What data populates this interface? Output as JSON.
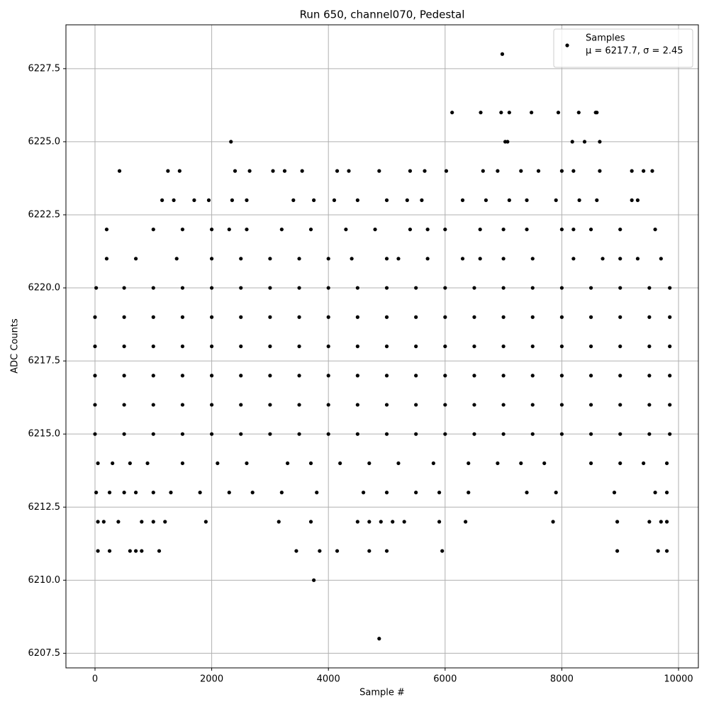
{
  "chart_data": {
    "type": "scatter",
    "title": "Run 650, channel070, Pedestal",
    "x_label": "Sample #",
    "y_label": "ADC Counts",
    "xlim": [
      -498,
      10340
    ],
    "ylim": [
      6207.0,
      6229.0
    ],
    "xticks": [
      0,
      2000,
      4000,
      6000,
      8000,
      10000
    ],
    "yticks": [
      6207.5,
      {
        "value": 6210,
        "label": "6210.0"
      },
      6212.5,
      {
        "value": 6215,
        "label": "6215.0"
      },
      6217.5,
      {
        "value": 6220,
        "label": "6220.0"
      },
      6222.5,
      {
        "value": 6225,
        "label": "6225.0"
      },
      6227.5
    ],
    "grid": true,
    "legend": "upper right",
    "series": [
      {
        "name": "Samples",
        "color": "#000000",
        "annotation": "μ = 6217.7, σ = 2.45",
        "x": [
          50,
          150,
          400,
          800,
          1000,
          1200,
          1900,
          3150,
          3700,
          4500,
          4700,
          4900,
          5100,
          5300,
          5900,
          6350,
          7850,
          8950,
          9500,
          9700,
          9800,
          20,
          250,
          500,
          700,
          1000,
          1300,
          1800,
          2300,
          2700,
          3200,
          3800,
          4600,
          5000,
          5500,
          5900,
          6400,
          7400,
          7900,
          8900,
          9600,
          9800,
          50,
          300,
          600,
          900,
          1500,
          2100,
          2600,
          3300,
          3700,
          4200,
          4700,
          5200,
          5800,
          6400,
          6900,
          7300,
          7700,
          8500,
          9000,
          9400,
          9800,
          0,
          500,
          1000,
          1500,
          2000,
          2500,
          3000,
          3500,
          4000,
          4500,
          5000,
          5500,
          6000,
          6500,
          7000,
          7500,
          8000,
          8500,
          9000,
          9500,
          9850,
          0,
          500,
          1000,
          1500,
          2000,
          2500,
          3000,
          3500,
          4000,
          4500,
          5000,
          5500,
          6000,
          6500,
          7000,
          7500,
          8000,
          8500,
          9000,
          9500,
          9850,
          0,
          500,
          1000,
          1500,
          2000,
          2500,
          3000,
          3500,
          4000,
          4500,
          5000,
          5500,
          6000,
          6500,
          7000,
          7500,
          8000,
          8500,
          9000,
          9500,
          9850,
          0,
          500,
          1000,
          1500,
          2000,
          2500,
          3000,
          3500,
          4000,
          4500,
          5000,
          5500,
          6000,
          6500,
          7000,
          7500,
          8000,
          8500,
          9000,
          9500,
          9850,
          0,
          500,
          1000,
          1500,
          2000,
          2500,
          3000,
          3500,
          4000,
          4500,
          5000,
          5500,
          6000,
          6500,
          7000,
          7500,
          8000,
          8500,
          9000,
          9500,
          9850,
          20,
          500,
          1000,
          1500,
          2000,
          2500,
          3000,
          3500,
          4000,
          4500,
          5000,
          5500,
          6000,
          6500,
          7000,
          7500,
          8000,
          8500,
          9000,
          9500,
          9850,
          200,
          700,
          1400,
          2000,
          2500,
          3000,
          3500,
          4000,
          4400,
          5000,
          5200,
          5700,
          6300,
          6600,
          7000,
          7500,
          8200,
          8700,
          9000,
          9300,
          9700,
          200,
          1000,
          1500,
          2000,
          2300,
          2600,
          3200,
          3700,
          4300,
          4800,
          5400,
          5700,
          6000,
          6600,
          7000,
          7400,
          8000,
          8200,
          8500,
          9000,
          9600,
          50,
          250,
          600,
          700,
          800,
          1100,
          3450,
          3850,
          4150,
          4700,
          5000,
          5950,
          8950,
          9650,
          9800,
          1150,
          1350,
          1700,
          1950,
          2350,
          2600,
          3400,
          3750,
          4100,
          4500,
          5000,
          5350,
          5600,
          6300,
          6700,
          7100,
          7400,
          7900,
          8300,
          8600,
          9200,
          9300,
          420,
          1250,
          1450,
          2400,
          2650,
          3050,
          3250,
          3550,
          4150,
          4350,
          4870,
          5400,
          5650,
          6020,
          6650,
          6900,
          7300,
          7600,
          8000,
          8200,
          8650,
          9200,
          9400,
          9550,
          2330,
          7030,
          7070,
          8180,
          8390,
          8650,
          6120,
          6610,
          6960,
          7100,
          7480,
          7940,
          8290,
          8580,
          8600,
          3750,
          4870,
          6980
        ],
        "values": [
          6212,
          6212,
          6212,
          6212,
          6212,
          6212,
          6212,
          6212,
          6212,
          6212,
          6212,
          6212,
          6212,
          6212,
          6212,
          6212,
          6212,
          6212,
          6212,
          6212,
          6212,
          6213,
          6213,
          6213,
          6213,
          6213,
          6213,
          6213,
          6213,
          6213,
          6213,
          6213,
          6213,
          6213,
          6213,
          6213,
          6213,
          6213,
          6213,
          6213,
          6213,
          6213,
          6214,
          6214,
          6214,
          6214,
          6214,
          6214,
          6214,
          6214,
          6214,
          6214,
          6214,
          6214,
          6214,
          6214,
          6214,
          6214,
          6214,
          6214,
          6214,
          6214,
          6214,
          6215,
          6215,
          6215,
          6215,
          6215,
          6215,
          6215,
          6215,
          6215,
          6215,
          6215,
          6215,
          6215,
          6215,
          6215,
          6215,
          6215,
          6215,
          6215,
          6215,
          6215,
          6216,
          6216,
          6216,
          6216,
          6216,
          6216,
          6216,
          6216,
          6216,
          6216,
          6216,
          6216,
          6216,
          6216,
          6216,
          6216,
          6216,
          6216,
          6216,
          6216,
          6216,
          6217,
          6217,
          6217,
          6217,
          6217,
          6217,
          6217,
          6217,
          6217,
          6217,
          6217,
          6217,
          6217,
          6217,
          6217,
          6217,
          6217,
          6217,
          6217,
          6217,
          6217,
          6218,
          6218,
          6218,
          6218,
          6218,
          6218,
          6218,
          6218,
          6218,
          6218,
          6218,
          6218,
          6218,
          6218,
          6218,
          6218,
          6218,
          6218,
          6218,
          6218,
          6218,
          6219,
          6219,
          6219,
          6219,
          6219,
          6219,
          6219,
          6219,
          6219,
          6219,
          6219,
          6219,
          6219,
          6219,
          6219,
          6219,
          6219,
          6219,
          6219,
          6219,
          6219,
          6220,
          6220,
          6220,
          6220,
          6220,
          6220,
          6220,
          6220,
          6220,
          6220,
          6220,
          6220,
          6220,
          6220,
          6220,
          6220,
          6220,
          6220,
          6220,
          6220,
          6220,
          6221,
          6221,
          6221,
          6221,
          6221,
          6221,
          6221,
          6221,
          6221,
          6221,
          6221,
          6221,
          6221,
          6221,
          6221,
          6221,
          6221,
          6221,
          6221,
          6221,
          6221,
          6222,
          6222,
          6222,
          6222,
          6222,
          6222,
          6222,
          6222,
          6222,
          6222,
          6222,
          6222,
          6222,
          6222,
          6222,
          6222,
          6222,
          6222,
          6222,
          6222,
          6222,
          6211,
          6211,
          6211,
          6211,
          6211,
          6211,
          6211,
          6211,
          6211,
          6211,
          6211,
          6211,
          6211,
          6211,
          6211,
          6223,
          6223,
          6223,
          6223,
          6223,
          6223,
          6223,
          6223,
          6223,
          6223,
          6223,
          6223,
          6223,
          6223,
          6223,
          6223,
          6223,
          6223,
          6223,
          6223,
          6223,
          6223,
          6224,
          6224,
          6224,
          6224,
          6224,
          6224,
          6224,
          6224,
          6224,
          6224,
          6224,
          6224,
          6224,
          6224,
          6224,
          6224,
          6224,
          6224,
          6224,
          6224,
          6224,
          6224,
          6224,
          6224,
          6225,
          6225,
          6225,
          6225,
          6225,
          6225,
          6226,
          6226,
          6226,
          6226,
          6226,
          6226,
          6226,
          6226,
          6226,
          6210,
          6208,
          6228
        ]
      }
    ]
  }
}
